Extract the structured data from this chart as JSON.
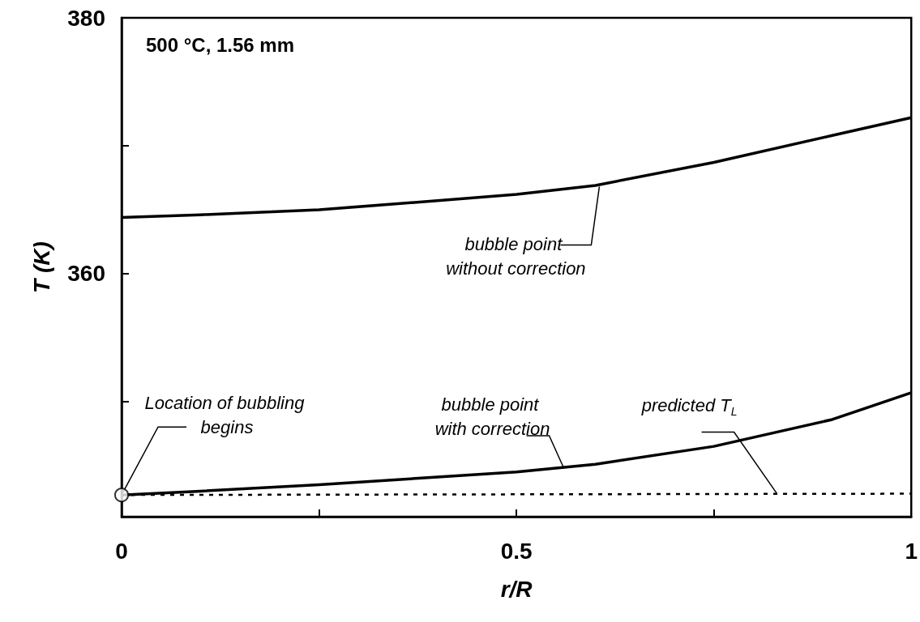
{
  "chart_data": {
    "type": "line",
    "title": "500 °C, 1.56 mm",
    "xlabel": "r/R",
    "ylabel": "T (K)",
    "xlim": [
      0,
      1
    ],
    "xticks": [
      0,
      {
        "value": 0.25,
        "label": null
      },
      0.5,
      {
        "value": 0.75,
        "label": null
      },
      1
    ],
    "ylim": [
      341,
      380
    ],
    "yticks": [
      {
        "value": 350,
        "label": null
      },
      360,
      {
        "value": 370,
        "label": null
      },
      380
    ],
    "grid": false,
    "marker": "none",
    "series": [
      {
        "color": "#000000",
        "x": [
          0,
          0.1,
          0.25,
          0.4,
          0.5,
          0.6,
          0.75,
          0.9,
          1
        ],
        "values": [
          364.4,
          364.6,
          365.0,
          365.7,
          366.2,
          366.9,
          368.7,
          370.8,
          372.2
        ]
      },
      {
        "color": "#000000",
        "x": [
          0,
          0.1,
          0.25,
          0.4,
          0.5,
          0.6,
          0.75,
          0.9,
          1
        ],
        "values": [
          342.7,
          343.0,
          343.5,
          344.1,
          344.5,
          345.1,
          346.5,
          348.6,
          350.7
        ]
      },
      {
        "color": "#000000",
        "line_style": "dashed",
        "x": [
          0,
          1
        ],
        "values": [
          342.7,
          342.8
        ]
      },
      {
        "type": "scatter",
        "marker": "circle",
        "color": "#000000",
        "x": [
          0
        ],
        "values": [
          342.7
        ]
      }
    ],
    "annotations": [
      {
        "text": "Location of bubbling begins",
        "x": 0,
        "y": 342.7
      },
      {
        "text": "bubble point with correction",
        "x": 0.56,
        "y": 344.8
      },
      {
        "text": "predicted T$_{L}$",
        "x": 0.83,
        "y": 342.8
      },
      {
        "text": "bubble point without correction",
        "x": 0.605,
        "y": 366.8
      }
    ]
  }
}
